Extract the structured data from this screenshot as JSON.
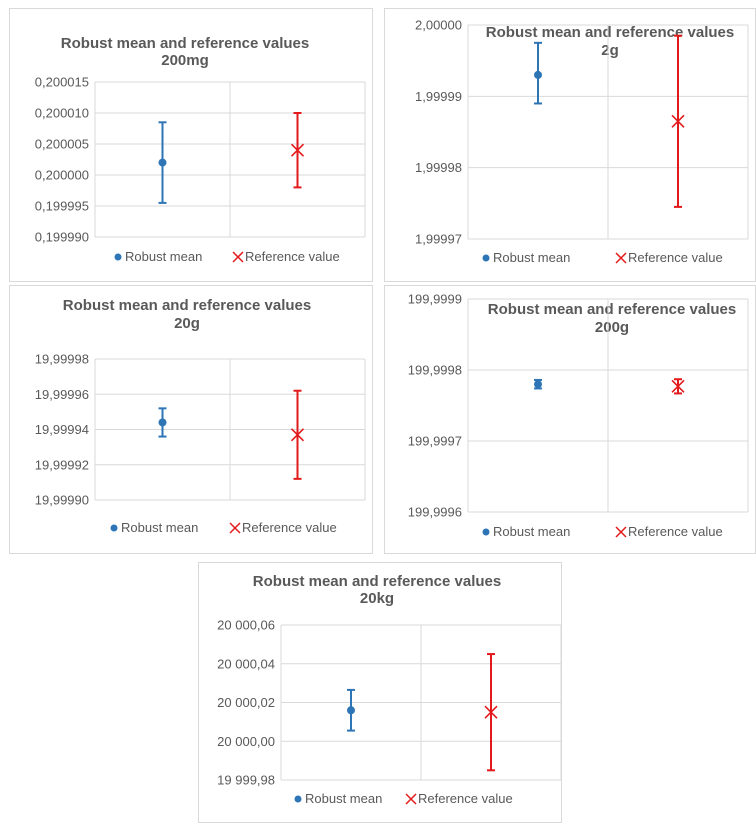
{
  "colors": {
    "robust": "#2e75b6",
    "reference": "#e31a1c",
    "grid": "#d9d9d9",
    "text": "#595959"
  },
  "chart_data": [
    {
      "type": "scatter",
      "title": "Robust mean and reference values",
      "subtitle": "200mg",
      "yticks": [
        "0,200015",
        "0,200010",
        "0,200005",
        "0,200000",
        "0,199995",
        "0,199990"
      ],
      "ylim": [
        0.19999,
        0.200015
      ],
      "series": [
        {
          "name": "Robust mean",
          "value": 0.200002,
          "low": 0.1999955,
          "high": 0.2000085
        },
        {
          "name": "Reference value",
          "value": 0.200004,
          "low": 0.199998,
          "high": 0.20001
        }
      ]
    },
    {
      "type": "scatter",
      "title": "Robust mean and reference values",
      "subtitle": "2g",
      "yticks": [
        "2,00000",
        "1,99999",
        "1,99998",
        "1,99997"
      ],
      "ylim": [
        1.99997,
        2.0
      ],
      "series": [
        {
          "name": "Robust mean",
          "value": 1.999993,
          "low": 1.999989,
          "high": 1.9999975
        },
        {
          "name": "Reference value",
          "value": 1.9999865,
          "low": 1.9999745,
          "high": 1.9999985
        }
      ]
    },
    {
      "type": "scatter",
      "title": "Robust mean and reference values",
      "subtitle": "20g",
      "yticks": [
        "19,99998",
        "19,99996",
        "19,99994",
        "19,99992",
        "19,99990"
      ],
      "ylim": [
        19.9999,
        19.99998
      ],
      "series": [
        {
          "name": "Robust mean",
          "value": 19.999944,
          "low": 19.999936,
          "high": 19.999952
        },
        {
          "name": "Reference value",
          "value": 19.999937,
          "low": 19.999912,
          "high": 19.999962
        }
      ]
    },
    {
      "type": "scatter",
      "title": "Robust mean and reference values",
      "subtitle": "200g",
      "yticks": [
        "199,9999",
        "199,9998",
        "199,9997",
        "199,9996"
      ],
      "ylim": [
        199.9996,
        199.9999
      ],
      "series": [
        {
          "name": "Robust mean",
          "value": 199.99978,
          "low": 199.999774,
          "high": 199.999786
        },
        {
          "name": "Reference value",
          "value": 199.999777,
          "low": 199.999767,
          "high": 199.999787
        }
      ]
    },
    {
      "type": "scatter",
      "title": "Robust mean and reference values",
      "subtitle": "20kg",
      "yticks": [
        "20 000,06",
        "20 000,04",
        "20 000,02",
        "20 000,00",
        "19 999,98"
      ],
      "ylim": [
        19999.98,
        20000.06
      ],
      "series": [
        {
          "name": "Robust mean",
          "value": 20000.016,
          "low": 20000.0055,
          "high": 20000.0265
        },
        {
          "name": "Reference value",
          "value": 20000.015,
          "low": 19999.985,
          "high": 20000.045
        }
      ]
    }
  ]
}
